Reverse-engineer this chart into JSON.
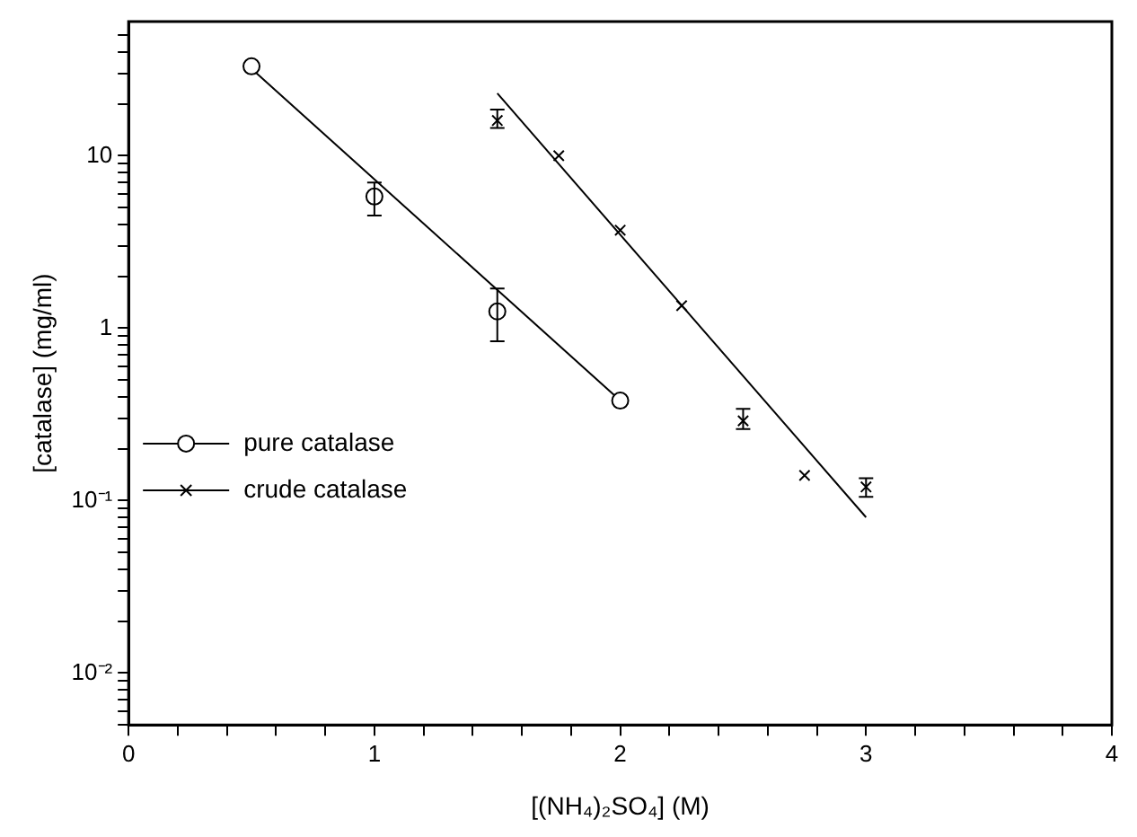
{
  "chart_data": {
    "type": "scatter",
    "xlabel": "[(NH₄)₂SO₄] (M)",
    "ylabel": "[catalase] (mg/ml)",
    "log": "y",
    "grid": false,
    "legend": "left",
    "xlim": [
      0,
      4
    ],
    "ylim": [
      0.005,
      60
    ],
    "xticks": [
      0,
      {
        "value": 0.2,
        "label": null
      },
      {
        "value": 0.4,
        "label": null
      },
      {
        "value": 0.6,
        "label": null
      },
      {
        "value": 0.8,
        "label": null
      },
      1,
      {
        "value": 1.2,
        "label": null
      },
      {
        "value": 1.4,
        "label": null
      },
      {
        "value": 1.6,
        "label": null
      },
      {
        "value": 1.8,
        "label": null
      },
      2,
      {
        "value": 2.2,
        "label": null
      },
      {
        "value": 2.4,
        "label": null
      },
      {
        "value": 2.6,
        "label": null
      },
      {
        "value": 2.8,
        "label": null
      },
      3,
      {
        "value": 3.2,
        "label": null
      },
      {
        "value": 3.4,
        "label": null
      },
      {
        "value": 3.6,
        "label": null
      },
      {
        "value": 3.8,
        "label": null
      },
      4
    ],
    "yticks": [
      {
        "value": 0.005,
        "label": null
      },
      {
        "value": 0.006,
        "label": null
      },
      {
        "value": 0.007,
        "label": null
      },
      {
        "value": 0.008,
        "label": null
      },
      {
        "value": 0.009,
        "label": null
      },
      {
        "value": 0.01,
        "label": "10⁻²"
      },
      {
        "value": 0.02,
        "label": null
      },
      {
        "value": 0.03,
        "label": null
      },
      {
        "value": 0.04,
        "label": null
      },
      {
        "value": 0.05,
        "label": null
      },
      {
        "value": 0.06,
        "label": null
      },
      {
        "value": 0.07,
        "label": null
      },
      {
        "value": 0.08,
        "label": null
      },
      {
        "value": 0.09,
        "label": null
      },
      {
        "value": 0.1,
        "label": "10⁻¹"
      },
      {
        "value": 0.2,
        "label": null
      },
      {
        "value": 0.3,
        "label": null
      },
      {
        "value": 0.4,
        "label": null
      },
      {
        "value": 0.5,
        "label": null
      },
      {
        "value": 0.6,
        "label": null
      },
      {
        "value": 0.7,
        "label": null
      },
      {
        "value": 0.8,
        "label": null
      },
      {
        "value": 0.9,
        "label": null
      },
      1,
      {
        "value": 2,
        "label": null
      },
      {
        "value": 3,
        "label": null
      },
      {
        "value": 4,
        "label": null
      },
      {
        "value": 5,
        "label": null
      },
      {
        "value": 6,
        "label": null
      },
      {
        "value": 7,
        "label": null
      },
      {
        "value": 8,
        "label": null
      },
      {
        "value": 9,
        "label": null
      },
      10,
      {
        "value": 20,
        "label": null
      },
      {
        "value": 30,
        "label": null
      },
      {
        "value": 40,
        "label": null
      },
      {
        "value": 50,
        "label": null
      }
    ],
    "series": [
      {
        "name": "pure catalase",
        "color": "#000000",
        "marker": "circle",
        "x": [
          0.5,
          1,
          1.5,
          2
        ],
        "values": [
          33,
          5.8,
          1.25,
          0.38
        ],
        "errors": [
          null,
          [
            4.5,
            7.0
          ],
          [
            0.84,
            1.7
          ],
          null
        ]
      },
      {
        "name": "crude catalase",
        "color": "#000000",
        "marker": "cross",
        "x": [
          1.5,
          1.75,
          2,
          2.25,
          2.5,
          2.75,
          3
        ],
        "values": [
          16,
          10,
          3.7,
          1.35,
          0.29,
          0.14,
          0.12
        ],
        "errors": [
          [
            14.5,
            18.5
          ],
          null,
          null,
          null,
          [
            0.26,
            0.34
          ],
          null,
          [
            0.105,
            0.135
          ]
        ]
      },
      {
        "type": "line",
        "color": "#000000",
        "x": [
          0.5,
          2
        ],
        "values": [
          32,
          0.38
        ]
      },
      {
        "type": "line",
        "color": "#000000",
        "x": [
          1.5,
          3
        ],
        "values": [
          23,
          0.08
        ]
      }
    ]
  }
}
